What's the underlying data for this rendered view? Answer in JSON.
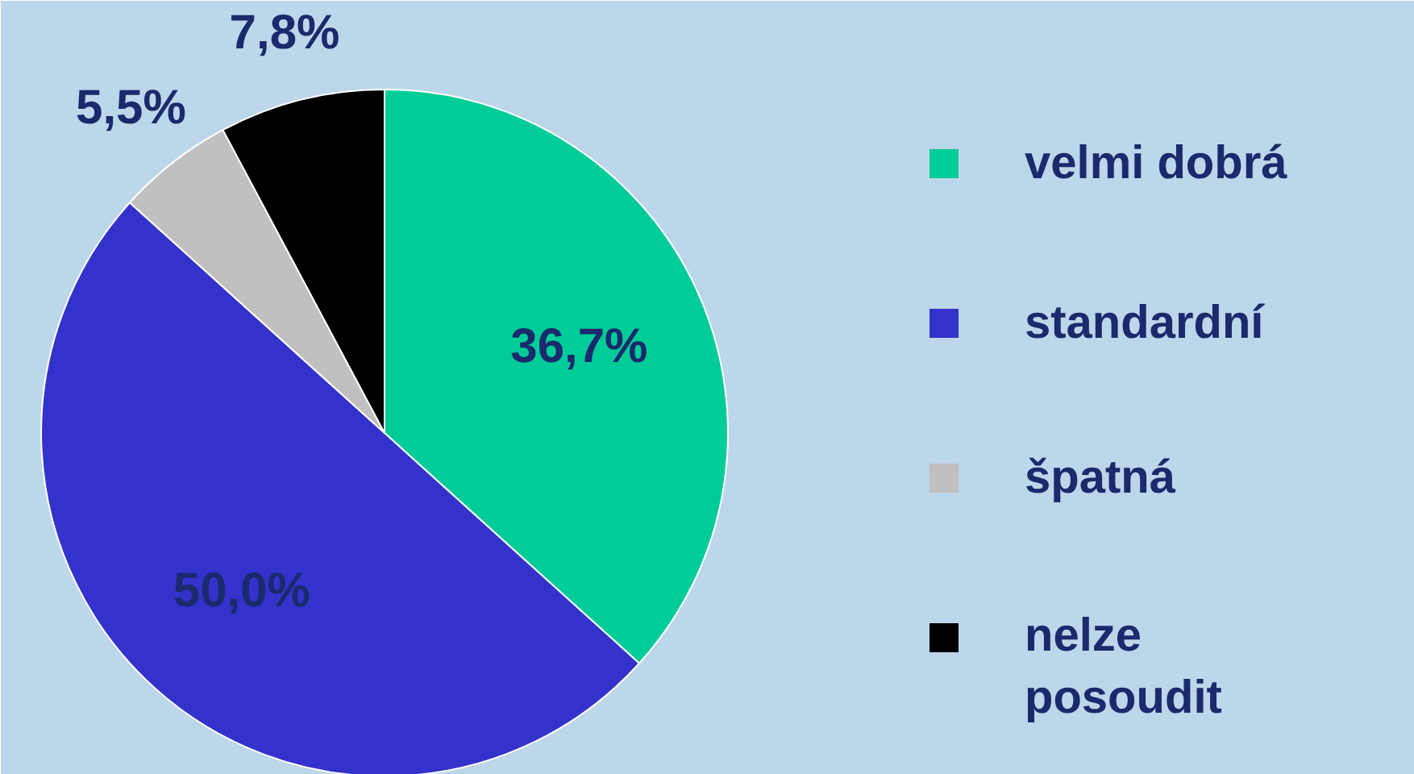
{
  "chart_data": {
    "type": "pie",
    "categories": [
      "velmi dobrá",
      "standardní",
      "špatná",
      "nelze posoudit"
    ],
    "values": [
      36.7,
      50.0,
      5.5,
      7.8
    ],
    "colors": [
      "#00cc99",
      "#3333cc",
      "#c0c0c0",
      "#000000"
    ],
    "value_labels": [
      "36,7%",
      "50,0%",
      "5,5%",
      "7,8%"
    ],
    "legend": "right"
  }
}
